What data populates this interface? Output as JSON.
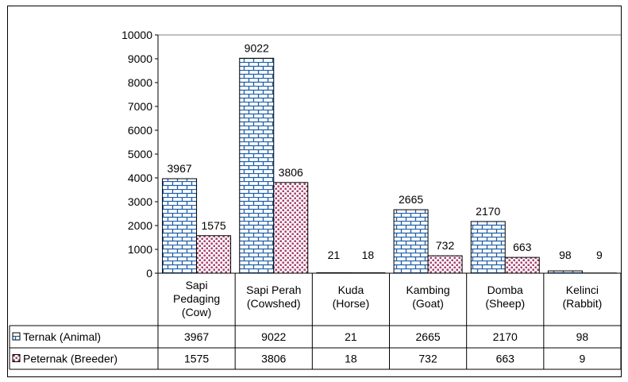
{
  "chart_data": {
    "type": "bar",
    "title": "",
    "xlabel": "",
    "ylabel": "",
    "ylim": [
      0,
      10000
    ],
    "yticks": [
      0,
      1000,
      2000,
      3000,
      4000,
      5000,
      6000,
      7000,
      8000,
      9000,
      10000
    ],
    "grid": false,
    "legend": "data-table",
    "categories": [
      [
        "Sapi",
        "Pedaging",
        "(Cow)"
      ],
      [
        "Sapi Perah",
        "(Cowshed)"
      ],
      [
        "Kuda",
        "(Horse)"
      ],
      [
        "Kambing",
        "(Goat)"
      ],
      [
        "Domba",
        "(Sheep)"
      ],
      [
        "Kelinci",
        "(Rabbit)"
      ]
    ],
    "series": [
      {
        "name": "Ternak (Animal)",
        "values": [
          3967,
          9022,
          21,
          2665,
          2170,
          98
        ],
        "color": "#1F5FA8",
        "pattern": "brick"
      },
      {
        "name": "Peternak (Breeder)",
        "values": [
          1575,
          3806,
          18,
          732,
          663,
          9
        ],
        "color": "#A0305F",
        "pattern": "dots"
      }
    ]
  }
}
